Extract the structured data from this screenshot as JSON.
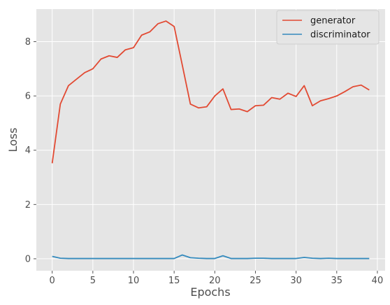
{
  "chart_data": {
    "type": "line",
    "title": "",
    "xlabel": "Epochs",
    "ylabel": "Loss",
    "xlim": [
      -1.95,
      40.95
    ],
    "ylim": [
      -0.44,
      9.2
    ],
    "xticks": [
      0,
      5,
      10,
      15,
      20,
      25,
      30,
      35,
      40
    ],
    "yticks": [
      0,
      2,
      4,
      6,
      8
    ],
    "grid": true,
    "legend": "top-right",
    "background": "#e5e5e5",
    "x": [
      0,
      1,
      2,
      3,
      4,
      5,
      6,
      7,
      8,
      9,
      10,
      11,
      12,
      13,
      14,
      15,
      16,
      17,
      18,
      19,
      20,
      21,
      22,
      23,
      24,
      25,
      26,
      27,
      28,
      29,
      30,
      31,
      32,
      33,
      34,
      35,
      36,
      37,
      38,
      39
    ],
    "series": [
      {
        "name": "generator",
        "color": "#e24a33",
        "values": [
          3.52,
          5.7,
          6.38,
          6.62,
          6.86,
          7.0,
          7.36,
          7.48,
          7.42,
          7.7,
          7.78,
          8.24,
          8.36,
          8.66,
          8.76,
          8.56,
          7.14,
          5.7,
          5.56,
          5.6,
          6.0,
          6.26,
          5.5,
          5.52,
          5.42,
          5.64,
          5.66,
          5.94,
          5.88,
          6.1,
          5.98,
          6.38,
          5.64,
          5.82,
          5.9,
          6.0,
          6.16,
          6.34,
          6.4,
          6.22
        ]
      },
      {
        "name": "discriminator",
        "color": "#348abd",
        "values": [
          0.09,
          0.02,
          0.01,
          0.01,
          0.01,
          0.01,
          0.01,
          0.01,
          0.01,
          0.01,
          0.01,
          0.01,
          0.01,
          0.01,
          0.01,
          0.01,
          0.14,
          0.04,
          0.02,
          0.01,
          0.01,
          0.11,
          0.01,
          0.01,
          0.01,
          0.02,
          0.02,
          0.01,
          0.01,
          0.01,
          0.01,
          0.05,
          0.02,
          0.01,
          0.02,
          0.01,
          0.01,
          0.01,
          0.01,
          0.01
        ]
      }
    ]
  }
}
